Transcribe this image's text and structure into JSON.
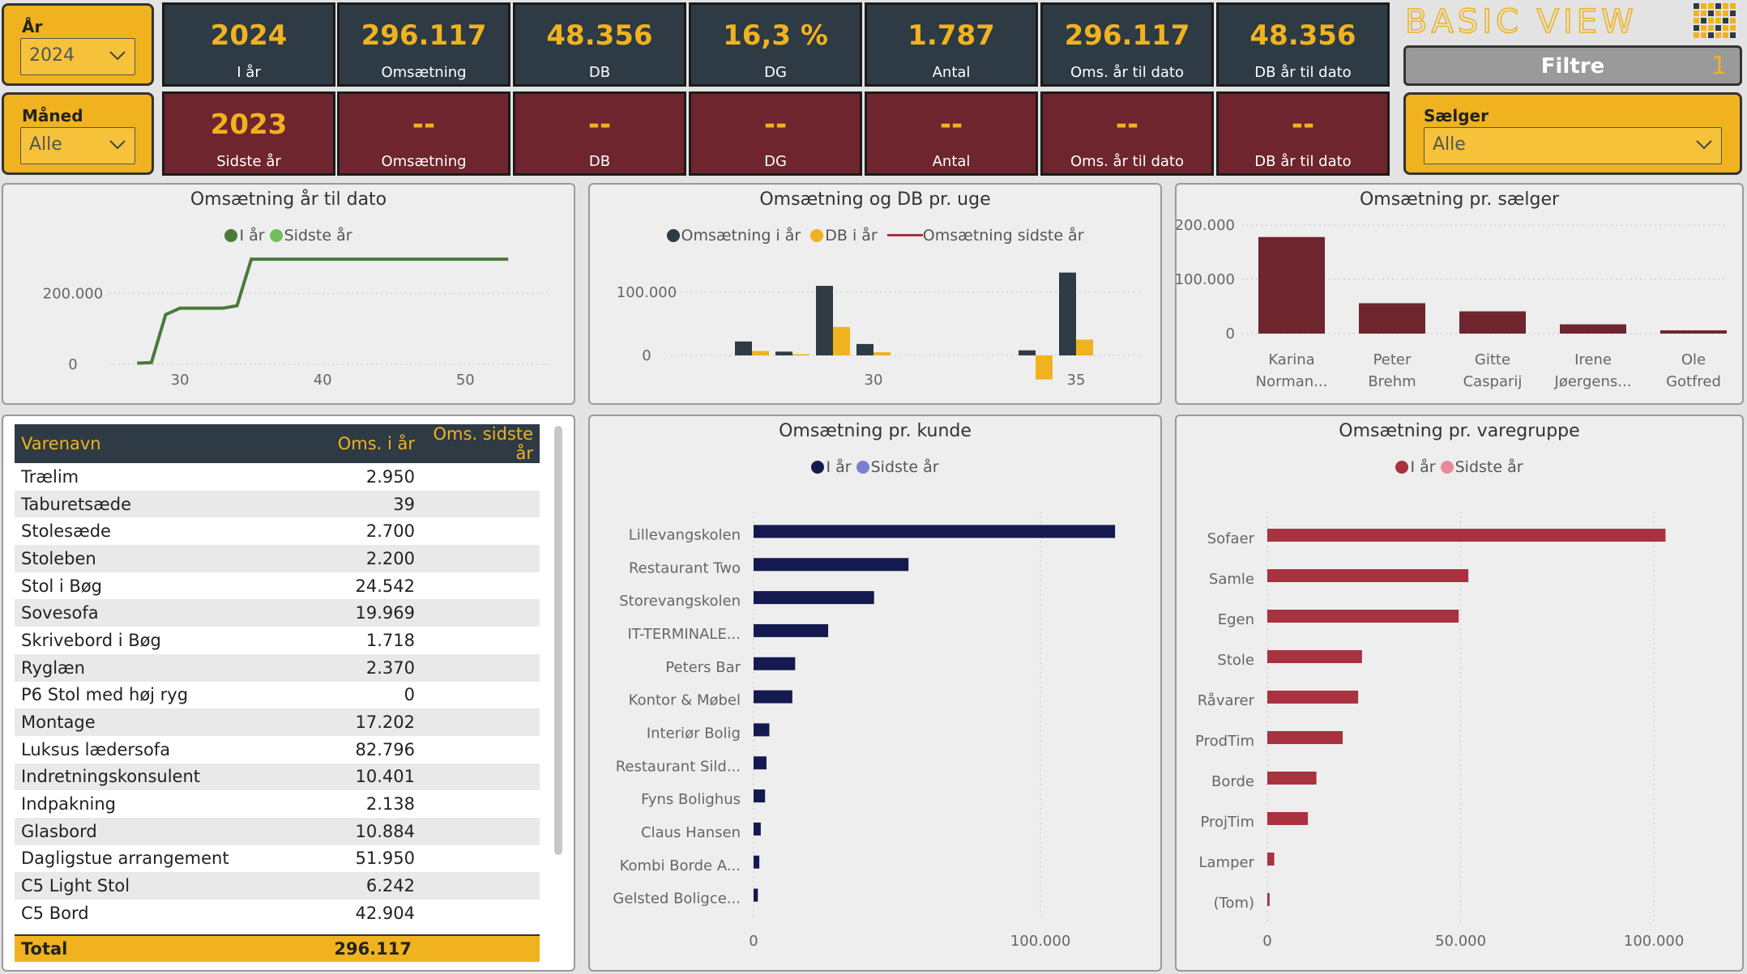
{
  "slicers": {
    "year": {
      "label": "År",
      "value": "2024"
    },
    "month": {
      "label": "Måned",
      "value": "Alle"
    },
    "seller": {
      "label": "Sælger",
      "value": "Alle"
    }
  },
  "logo": {
    "text": "BASIC VIEW"
  },
  "filter_button": {
    "label": "Filtre",
    "count": "1"
  },
  "kpi_current": [
    {
      "value": "2024",
      "caption": "I år"
    },
    {
      "value": "296.117",
      "caption": "Omsætning"
    },
    {
      "value": "48.356",
      "caption": "DB"
    },
    {
      "value": "16,3 %",
      "caption": "DG"
    },
    {
      "value": "1.787",
      "caption": "Antal"
    },
    {
      "value": "296.117",
      "caption": "Oms. år til dato"
    },
    {
      "value": "48.356",
      "caption": "DB år til dato"
    }
  ],
  "kpi_last": [
    {
      "value": "2023",
      "caption": "Sidste år"
    },
    {
      "value": "--",
      "caption": "Omsætning"
    },
    {
      "value": "--",
      "caption": "DB"
    },
    {
      "value": "--",
      "caption": "DG"
    },
    {
      "value": "--",
      "caption": "Antal"
    },
    {
      "value": "--",
      "caption": "Oms. år til dato"
    },
    {
      "value": "--",
      "caption": "DB år til dato"
    }
  ],
  "colors": {
    "gold": "#f0b31f",
    "dark": "#2e3a44",
    "maroon": "#6e252d",
    "green": "#4a7a3a",
    "lightgreen": "#6fbf5f",
    "navy": "#141a4f",
    "lavender": "#7b7fd0",
    "red": "#a83240",
    "pink": "#e8899a"
  },
  "chart_data": [
    {
      "id": "ytd",
      "type": "line",
      "title": "Omsætning år til dato",
      "legend": [
        "I år",
        "Sidste år"
      ],
      "x": [
        27,
        28,
        29,
        30,
        31,
        32,
        33,
        34,
        35,
        36,
        40,
        45,
        50,
        53
      ],
      "series": [
        {
          "name": "I år",
          "values": [
            3000,
            5000,
            140000,
            158000,
            158000,
            158000,
            158000,
            165000,
            296000,
            296117,
            296117,
            296117,
            296117,
            296117
          ]
        }
      ],
      "xticks": [
        "30",
        "40",
        "50"
      ],
      "yticks": [
        "0",
        "200.000"
      ],
      "xlim": [
        25,
        56
      ],
      "ylim": [
        0,
        310000
      ]
    },
    {
      "id": "weekly",
      "type": "bar",
      "title": "Omsætning og DB pr. uge",
      "legend": [
        "Omsætning i år",
        "DB i år",
        "Omsætning sidste år"
      ],
      "weeks": [
        27,
        28,
        29,
        30,
        34,
        35
      ],
      "series": [
        {
          "name": "Omsætning i år",
          "values": [
            22000,
            6000,
            110000,
            18000,
            8000,
            131000
          ]
        },
        {
          "name": "DB i år",
          "values": [
            7000,
            2000,
            45000,
            5000,
            -38000,
            25000
          ]
        }
      ],
      "xticks": [
        "30",
        "35"
      ],
      "yticks": [
        "0",
        "100.000"
      ],
      "xlim": [
        25,
        36.6
      ],
      "ylim": [
        -50000,
        160000
      ]
    },
    {
      "id": "seller",
      "type": "bar",
      "title": "Omsætning pr. sælger",
      "categories": [
        [
          "Karina",
          "Norman..."
        ],
        [
          "Peter",
          "Brehm"
        ],
        [
          "Gitte",
          "Casparij"
        ],
        [
          "Irene",
          "Jøergens..."
        ],
        [
          "Ole",
          "Gotfred"
        ]
      ],
      "values": [
        178000,
        56000,
        41000,
        17000,
        6000
      ],
      "yticks": [
        "0",
        "100.000",
        "200.000"
      ],
      "ylim": [
        0,
        215000
      ]
    },
    {
      "id": "customer",
      "type": "bar",
      "title": "Omsætning pr. kunde",
      "orientation": "horizontal",
      "legend": [
        "I år",
        "Sidste år"
      ],
      "categories": [
        "Lillevangskolen",
        "Restaurant Two",
        "Storevangskolen",
        "IT-TERMINALE...",
        "Peters Bar",
        "Kontor & Møbel",
        "Interiør Bolig",
        "Restaurant Sild...",
        "Fyns Bolighus",
        "Claus Hansen",
        "Kombi Borde A...",
        "Gelsted Boligce..."
      ],
      "values": [
        126000,
        54000,
        42000,
        26000,
        14500,
        13500,
        5500,
        4500,
        4000,
        2500,
        2000,
        1500
      ],
      "xticks": [
        "0",
        "100.000"
      ],
      "xlim": [
        0,
        135000
      ]
    },
    {
      "id": "group",
      "type": "bar",
      "title": "Omsætning pr. varegruppe",
      "orientation": "horizontal",
      "legend": [
        "I år",
        "Sidste år"
      ],
      "categories": [
        "Sofaer",
        "Samle",
        "Egen",
        "Stole",
        "Råvarer",
        "ProdTim",
        "Borde",
        "ProjTim",
        "Lamper",
        "(Tom)"
      ],
      "values": [
        103000,
        52000,
        49500,
        24500,
        23500,
        19500,
        12700,
        10500,
        1800,
        600
      ],
      "xticks": [
        "0",
        "50.000",
        "100.000"
      ],
      "xlim": [
        0,
        118000
      ]
    }
  ],
  "table": {
    "columns": [
      "Varenavn",
      "Oms. i år",
      "Oms. sidste år"
    ],
    "rows": [
      [
        "Trælim",
        "2.950",
        ""
      ],
      [
        "Taburetsæde",
        "39",
        ""
      ],
      [
        "Stolesæde",
        "2.700",
        ""
      ],
      [
        "Stoleben",
        "2.200",
        ""
      ],
      [
        "Stol i Bøg",
        "24.542",
        ""
      ],
      [
        "Sovesofa",
        "19.969",
        ""
      ],
      [
        "Skrivebord i Bøg",
        "1.718",
        ""
      ],
      [
        "Ryglæn",
        "2.370",
        ""
      ],
      [
        "P6 Stol med høj ryg",
        "0",
        ""
      ],
      [
        "Montage",
        "17.202",
        ""
      ],
      [
        "Luksus lædersofa",
        "82.796",
        ""
      ],
      [
        "Indretningskonsulent",
        "10.401",
        ""
      ],
      [
        "Indpakning",
        "2.138",
        ""
      ],
      [
        "Glasbord",
        "10.884",
        ""
      ],
      [
        "Dagligstue arrangement",
        "51.950",
        ""
      ],
      [
        "C5 Light Stol",
        "6.242",
        ""
      ],
      [
        "C5 Bord",
        "42.904",
        ""
      ]
    ],
    "total": {
      "label": "Total",
      "value": "296.117"
    }
  }
}
